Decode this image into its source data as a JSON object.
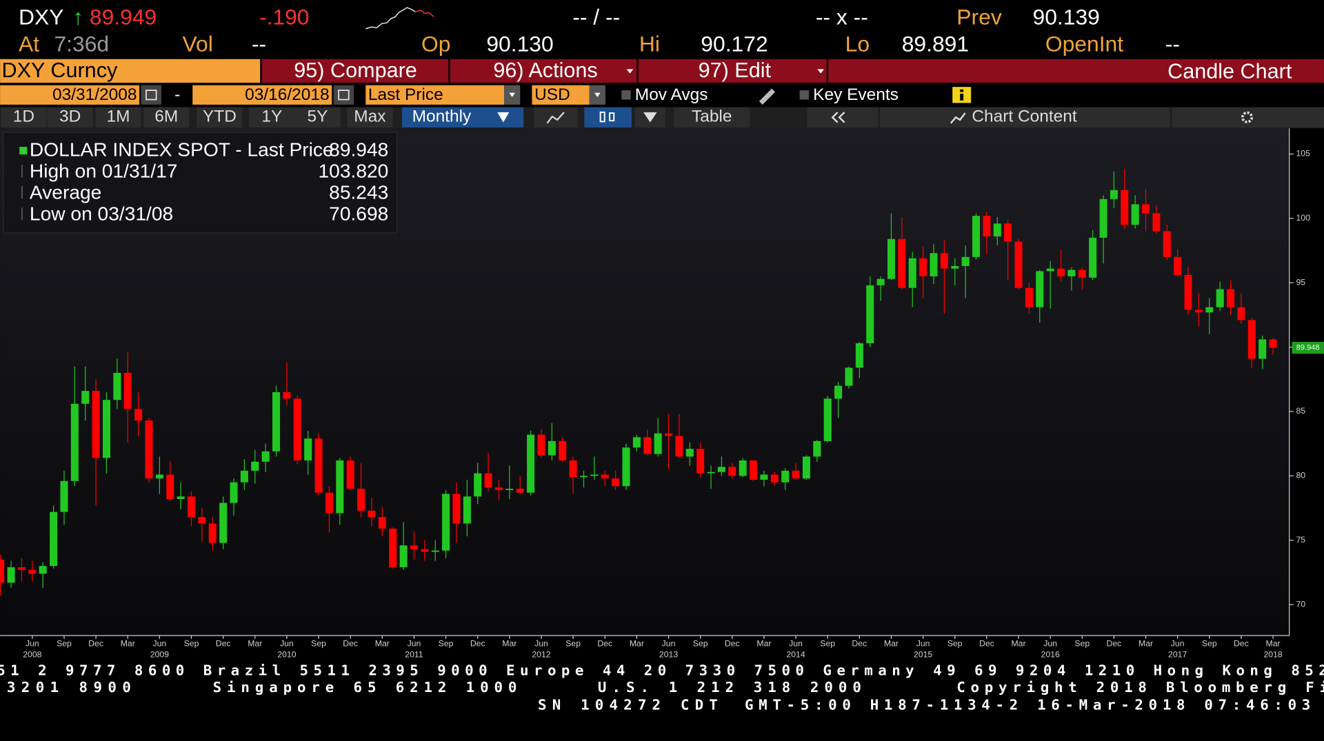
{
  "header": {
    "ticker": "DXY",
    "arrow": "↑",
    "price": "89.949",
    "change": "-.190",
    "bid_ask": "-- / --",
    "size": "-- x --",
    "prev_label": "Prev",
    "prev": "90.139",
    "at_label": "At",
    "time": "7:36d",
    "vol_label": "Vol",
    "vol": "--",
    "open_label": "Op",
    "open": "90.130",
    "high_label": "Hi",
    "high": "90.172",
    "low_label": "Lo",
    "low": "89.891",
    "openint_label": "OpenInt",
    "openint": "--"
  },
  "menu": {
    "security": "DXY Curncy",
    "compare": "95) Compare",
    "actions": "96) Actions",
    "edit": "97) Edit",
    "view": "Candle Chart"
  },
  "controls": {
    "start_date": "03/31/2008",
    "separator": "-",
    "end_date": "03/16/2018",
    "field": "Last Price",
    "currency": "USD",
    "mov_avgs": "Mov Avgs",
    "key_events": "Key Events"
  },
  "toolbar": {
    "periods": [
      "1D",
      "3D",
      "1M",
      "6M",
      "YTD",
      "1Y",
      "5Y",
      "Max"
    ],
    "frequency": "Monthly",
    "table": "Table",
    "chart_content": "Chart Content"
  },
  "chart_data": {
    "type": "candlestick",
    "legend": [
      {
        "label": "DOLLAR INDEX SPOT - Last Price",
        "value": "89.948"
      },
      {
        "label": "High on 01/31/17",
        "value": "103.820"
      },
      {
        "label": "Average",
        "value": "85.243"
      },
      {
        "label": "Low on 03/31/08",
        "value": "70.698"
      }
    ],
    "up_color": "#22c822",
    "down_color": "#ff0000",
    "x": [
      "2008-03",
      "2008-04",
      "2008-05",
      "2008-06",
      "2008-07",
      "2008-08",
      "2008-09",
      "2008-10",
      "2008-11",
      "2008-12",
      "2009-01",
      "2009-02",
      "2009-03",
      "2009-04",
      "2009-05",
      "2009-06",
      "2009-07",
      "2009-08",
      "2009-09",
      "2009-10",
      "2009-11",
      "2009-12",
      "2010-01",
      "2010-02",
      "2010-03",
      "2010-04",
      "2010-05",
      "2010-06",
      "2010-07",
      "2010-08",
      "2010-09",
      "2010-10",
      "2010-11",
      "2010-12",
      "2011-01",
      "2011-02",
      "2011-03",
      "2011-04",
      "2011-05",
      "2011-06",
      "2011-07",
      "2011-08",
      "2011-09",
      "2011-10",
      "2011-11",
      "2011-12",
      "2012-01",
      "2012-02",
      "2012-03",
      "2012-04",
      "2012-05",
      "2012-06",
      "2012-07",
      "2012-08",
      "2012-09",
      "2012-10",
      "2012-11",
      "2012-12",
      "2013-01",
      "2013-02",
      "2013-03",
      "2013-04",
      "2013-05",
      "2013-06",
      "2013-07",
      "2013-08",
      "2013-09",
      "2013-10",
      "2013-11",
      "2013-12",
      "2014-01",
      "2014-02",
      "2014-03",
      "2014-04",
      "2014-05",
      "2014-06",
      "2014-07",
      "2014-08",
      "2014-09",
      "2014-10",
      "2014-11",
      "2014-12",
      "2015-01",
      "2015-02",
      "2015-03",
      "2015-04",
      "2015-05",
      "2015-06",
      "2015-07",
      "2015-08",
      "2015-09",
      "2015-10",
      "2015-11",
      "2015-12",
      "2016-01",
      "2016-02",
      "2016-03",
      "2016-04",
      "2016-05",
      "2016-06",
      "2016-07",
      "2016-08",
      "2016-09",
      "2016-10",
      "2016-11",
      "2016-12",
      "2017-01",
      "2017-02",
      "2017-03",
      "2017-04",
      "2017-05",
      "2017-06",
      "2017-07",
      "2017-08",
      "2017-09",
      "2017-10",
      "2017-11",
      "2017-12",
      "2018-01",
      "2018-02",
      "2018-03"
    ],
    "open": [
      73.5,
      71.7,
      72.9,
      72.7,
      72.4,
      73.0,
      77.2,
      79.6,
      85.6,
      86.6,
      81.4,
      85.9,
      88.0,
      85.2,
      84.3,
      79.8,
      80.1,
      78.2,
      78.4,
      76.8,
      76.3,
      74.8,
      77.9,
      79.5,
      80.4,
      81.1,
      81.9,
      86.5,
      86.0,
      81.2,
      82.9,
      78.7,
      77.1,
      81.2,
      79.0,
      77.3,
      76.8,
      75.9,
      72.9,
      74.6,
      74.3,
      74.1,
      74.2,
      78.6,
      76.3,
      78.4,
      80.2,
      79.1,
      78.9,
      79.0,
      78.7,
      83.2,
      81.6,
      82.7,
      81.2,
      79.9,
      80.0,
      80.1,
      79.8,
      79.2,
      82.2,
      83.0,
      81.7,
      83.3,
      83.1,
      81.5,
      82.1,
      80.2,
      80.3,
      80.7,
      80.0,
      81.2,
      79.7,
      80.1,
      79.5,
      80.4,
      79.8,
      81.5,
      82.7,
      86.0,
      87.0,
      88.4,
      90.3,
      94.8,
      95.3,
      98.4,
      94.6,
      96.9,
      95.5,
      97.3,
      96.1,
      96.3,
      97.0,
      100.2,
      98.6,
      99.6,
      98.2,
      94.6,
      93.1,
      95.9,
      96.1,
      95.5,
      96.0,
      95.4,
      98.5,
      101.5,
      102.2,
      99.5,
      101.1,
      100.4,
      99.0,
      97.0,
      95.6,
      92.9,
      92.7,
      93.1,
      94.5,
      93.1,
      92.1,
      89.1,
      90.6
    ],
    "high": [
      73.9,
      73.4,
      73.6,
      73.4,
      73.3,
      77.7,
      80.4,
      88.5,
      88.5,
      87.5,
      86.5,
      89.1,
      89.6,
      86.5,
      84.5,
      81.5,
      81.1,
      79.5,
      78.8,
      77.5,
      76.8,
      78.4,
      79.8,
      81.3,
      82.0,
      82.5,
      87.0,
      88.8,
      86.2,
      83.5,
      83.3,
      79.2,
      81.4,
      81.5,
      81.0,
      78.3,
      77.6,
      76.0,
      76.4,
      75.7,
      75.0,
      75.0,
      78.9,
      79.5,
      79.7,
      81.0,
      81.8,
      79.7,
      80.8,
      80.0,
      83.5,
      83.6,
      84.1,
      83.0,
      81.5,
      80.4,
      81.5,
      80.4,
      80.4,
      82.5,
      83.2,
      83.6,
      84.5,
      84.8,
      84.8,
      82.6,
      82.6,
      80.8,
      81.5,
      81.0,
      81.4,
      81.2,
      80.4,
      80.3,
      80.6,
      81.0,
      81.6,
      82.8,
      86.2,
      87.3,
      88.5,
      90.4,
      95.5,
      95.5,
      100.4,
      100.1,
      97.4,
      97.8,
      98.0,
      98.3,
      96.9,
      97.9,
      100.4,
      100.5,
      100.1,
      99.9,
      98.4,
      95.0,
      96.0,
      96.7,
      97.6,
      96.2,
      96.2,
      99.1,
      101.8,
      103.65,
      103.82,
      101.8,
      102.3,
      101.0,
      99.5,
      97.6,
      96.2,
      94.2,
      93.8,
      95.1,
      95.2,
      94.2,
      92.3,
      90.9,
      90.7
    ],
    "low": [
      70.7,
      71.3,
      71.8,
      71.8,
      71.3,
      72.8,
      76.2,
      79.2,
      84.3,
      77.7,
      80.2,
      85.2,
      82.6,
      83.1,
      79.5,
      78.6,
      78.1,
      77.4,
      76.1,
      74.9,
      74.2,
      74.3,
      76.9,
      78.9,
      79.4,
      80.3,
      81.5,
      85.5,
      80.9,
      80.1,
      78.5,
      75.6,
      76.2,
      78.9,
      76.8,
      76.1,
      75.3,
      72.8,
      72.7,
      73.5,
      73.4,
      73.4,
      73.6,
      74.8,
      75.3,
      77.8,
      78.8,
      78.1,
      78.2,
      78.6,
      78.5,
      81.4,
      81.2,
      81.1,
      78.6,
      79.1,
      79.7,
      79.2,
      78.9,
      78.9,
      81.9,
      81.6,
      81.5,
      80.5,
      81.4,
      80.8,
      79.9,
      79.0,
      80.0,
      79.8,
      79.9,
      79.6,
      79.2,
      79.2,
      78.9,
      79.7,
      79.7,
      81.1,
      82.6,
      84.5,
      86.8,
      87.6,
      90.0,
      93.6,
      95.2,
      94.5,
      93.1,
      93.8,
      94.9,
      92.6,
      94.8,
      93.8,
      96.8,
      97.2,
      97.9,
      95.2,
      94.5,
      92.6,
      91.9,
      93.0,
      95.1,
      94.4,
      94.5,
      95.2,
      96.5,
      100.8,
      99.2,
      99.2,
      99.0,
      98.8,
      96.8,
      95.5,
      92.5,
      91.6,
      91.0,
      92.8,
      92.5,
      91.8,
      88.4,
      88.3,
      89.4
    ],
    "close": [
      71.7,
      72.9,
      72.7,
      72.4,
      73.0,
      77.2,
      79.6,
      85.6,
      86.6,
      81.4,
      85.9,
      88.0,
      85.2,
      84.3,
      79.8,
      80.1,
      78.2,
      78.4,
      76.8,
      76.3,
      74.8,
      77.9,
      79.5,
      80.4,
      81.1,
      81.9,
      86.5,
      86.0,
      81.2,
      82.9,
      78.7,
      77.1,
      81.2,
      79.0,
      77.3,
      76.8,
      75.9,
      72.9,
      74.6,
      74.3,
      74.1,
      74.2,
      78.6,
      76.3,
      78.4,
      80.2,
      79.1,
      78.9,
      79.0,
      78.7,
      83.2,
      81.6,
      82.7,
      81.2,
      79.9,
      80.0,
      80.1,
      79.8,
      79.2,
      82.2,
      83.0,
      81.7,
      83.3,
      83.1,
      81.5,
      82.1,
      80.2,
      80.3,
      80.7,
      80.0,
      81.2,
      79.7,
      80.1,
      79.5,
      80.4,
      79.8,
      81.5,
      82.7,
      86.0,
      87.0,
      88.4,
      90.3,
      94.8,
      95.3,
      98.4,
      94.6,
      96.9,
      95.5,
      97.3,
      96.1,
      96.3,
      97.0,
      100.2,
      98.6,
      99.6,
      98.2,
      94.6,
      93.1,
      95.9,
      96.1,
      95.5,
      96.0,
      95.4,
      98.5,
      101.5,
      102.2,
      99.5,
      101.1,
      100.4,
      99.0,
      97.0,
      95.6,
      92.9,
      92.7,
      93.1,
      94.5,
      93.1,
      92.1,
      89.1,
      90.6,
      89.948
    ],
    "ylim": [
      67.6,
      107.0
    ],
    "yticks": [
      70,
      75,
      80,
      85,
      90,
      95,
      100,
      105
    ],
    "xticks": [
      {
        "value": "2008-06",
        "label": "Jun"
      },
      {
        "value": "2008-09",
        "label": "Sep"
      },
      {
        "value": "2008-12",
        "label": "Dec"
      },
      {
        "value": "2009-03",
        "label": "Mar"
      },
      {
        "value": "2009-06",
        "label": "Jun"
      },
      {
        "value": "2009-09",
        "label": "Sep"
      },
      {
        "value": "2009-12",
        "label": "Dec"
      },
      {
        "value": "2010-03",
        "label": "Mar"
      },
      {
        "value": "2010-06",
        "label": "Jun"
      },
      {
        "value": "2010-09",
        "label": "Sep"
      },
      {
        "value": "2010-12",
        "label": "Dec"
      },
      {
        "value": "2011-03",
        "label": "Mar"
      },
      {
        "value": "2011-06",
        "label": "Jun"
      },
      {
        "value": "2011-09",
        "label": "Sep"
      },
      {
        "value": "2011-12",
        "label": "Dec"
      },
      {
        "value": "2012-03",
        "label": "Mar"
      },
      {
        "value": "2012-06",
        "label": "Jun"
      },
      {
        "value": "2012-09",
        "label": "Sep"
      },
      {
        "value": "2012-12",
        "label": "Dec"
      },
      {
        "value": "2013-03",
        "label": "Mar"
      },
      {
        "value": "2013-06",
        "label": "Jun"
      },
      {
        "value": "2013-09",
        "label": "Sep"
      },
      {
        "value": "2013-12",
        "label": "Dec"
      },
      {
        "value": "2014-03",
        "label": "Mar"
      },
      {
        "value": "2014-06",
        "label": "Jun"
      },
      {
        "value": "2014-09",
        "label": "Sep"
      },
      {
        "value": "2014-12",
        "label": "Dec"
      },
      {
        "value": "2015-03",
        "label": "Mar"
      },
      {
        "value": "2015-06",
        "label": "Jun"
      },
      {
        "value": "2015-09",
        "label": "Sep"
      },
      {
        "value": "2015-12",
        "label": "Dec"
      },
      {
        "value": "2016-03",
        "label": "Mar"
      },
      {
        "value": "2016-06",
        "label": "Jun"
      },
      {
        "value": "2016-09",
        "label": "Sep"
      },
      {
        "value": "2016-12",
        "label": "Dec"
      },
      {
        "value": "2017-03",
        "label": "Mar"
      },
      {
        "value": "2017-06",
        "label": "Jun"
      },
      {
        "value": "2017-09",
        "label": "Sep"
      },
      {
        "value": "2017-12",
        "label": "Dec"
      },
      {
        "value": "2018-03",
        "label": "Mar"
      }
    ],
    "year_labels": [
      {
        "value": "2008-06",
        "label": "2008"
      },
      {
        "value": "2009-06",
        "label": "2009"
      },
      {
        "value": "2010-06",
        "label": "2010"
      },
      {
        "value": "2011-06",
        "label": "2011"
      },
      {
        "value": "2012-06",
        "label": "2012"
      },
      {
        "value": "2013-06",
        "label": "2013"
      },
      {
        "value": "2014-06",
        "label": "2014"
      },
      {
        "value": "2015-06",
        "label": "2015"
      },
      {
        "value": "2016-06",
        "label": "2016"
      },
      {
        "value": "2017-06",
        "label": "2017"
      },
      {
        "value": "2018-03",
        "label": "2018"
      }
    ]
  },
  "footer": {
    "line1": "51 2 9777 8600 Brazil 5511 2395 9000 Europe 44 20 7330 7500 Germany 49 69 9204 1210 Hong Kong 852",
    "line2": [
      "3201 8900",
      "Singapore 65 6212 1000",
      "U.S. 1 212 318 2000",
      "Copyright 2018 Bloomberg Fi"
    ],
    "line3": [
      "SN 104272 CDT",
      "GMT-5:00 H187-1134-2 16-Mar-2018 07:46:03"
    ]
  }
}
